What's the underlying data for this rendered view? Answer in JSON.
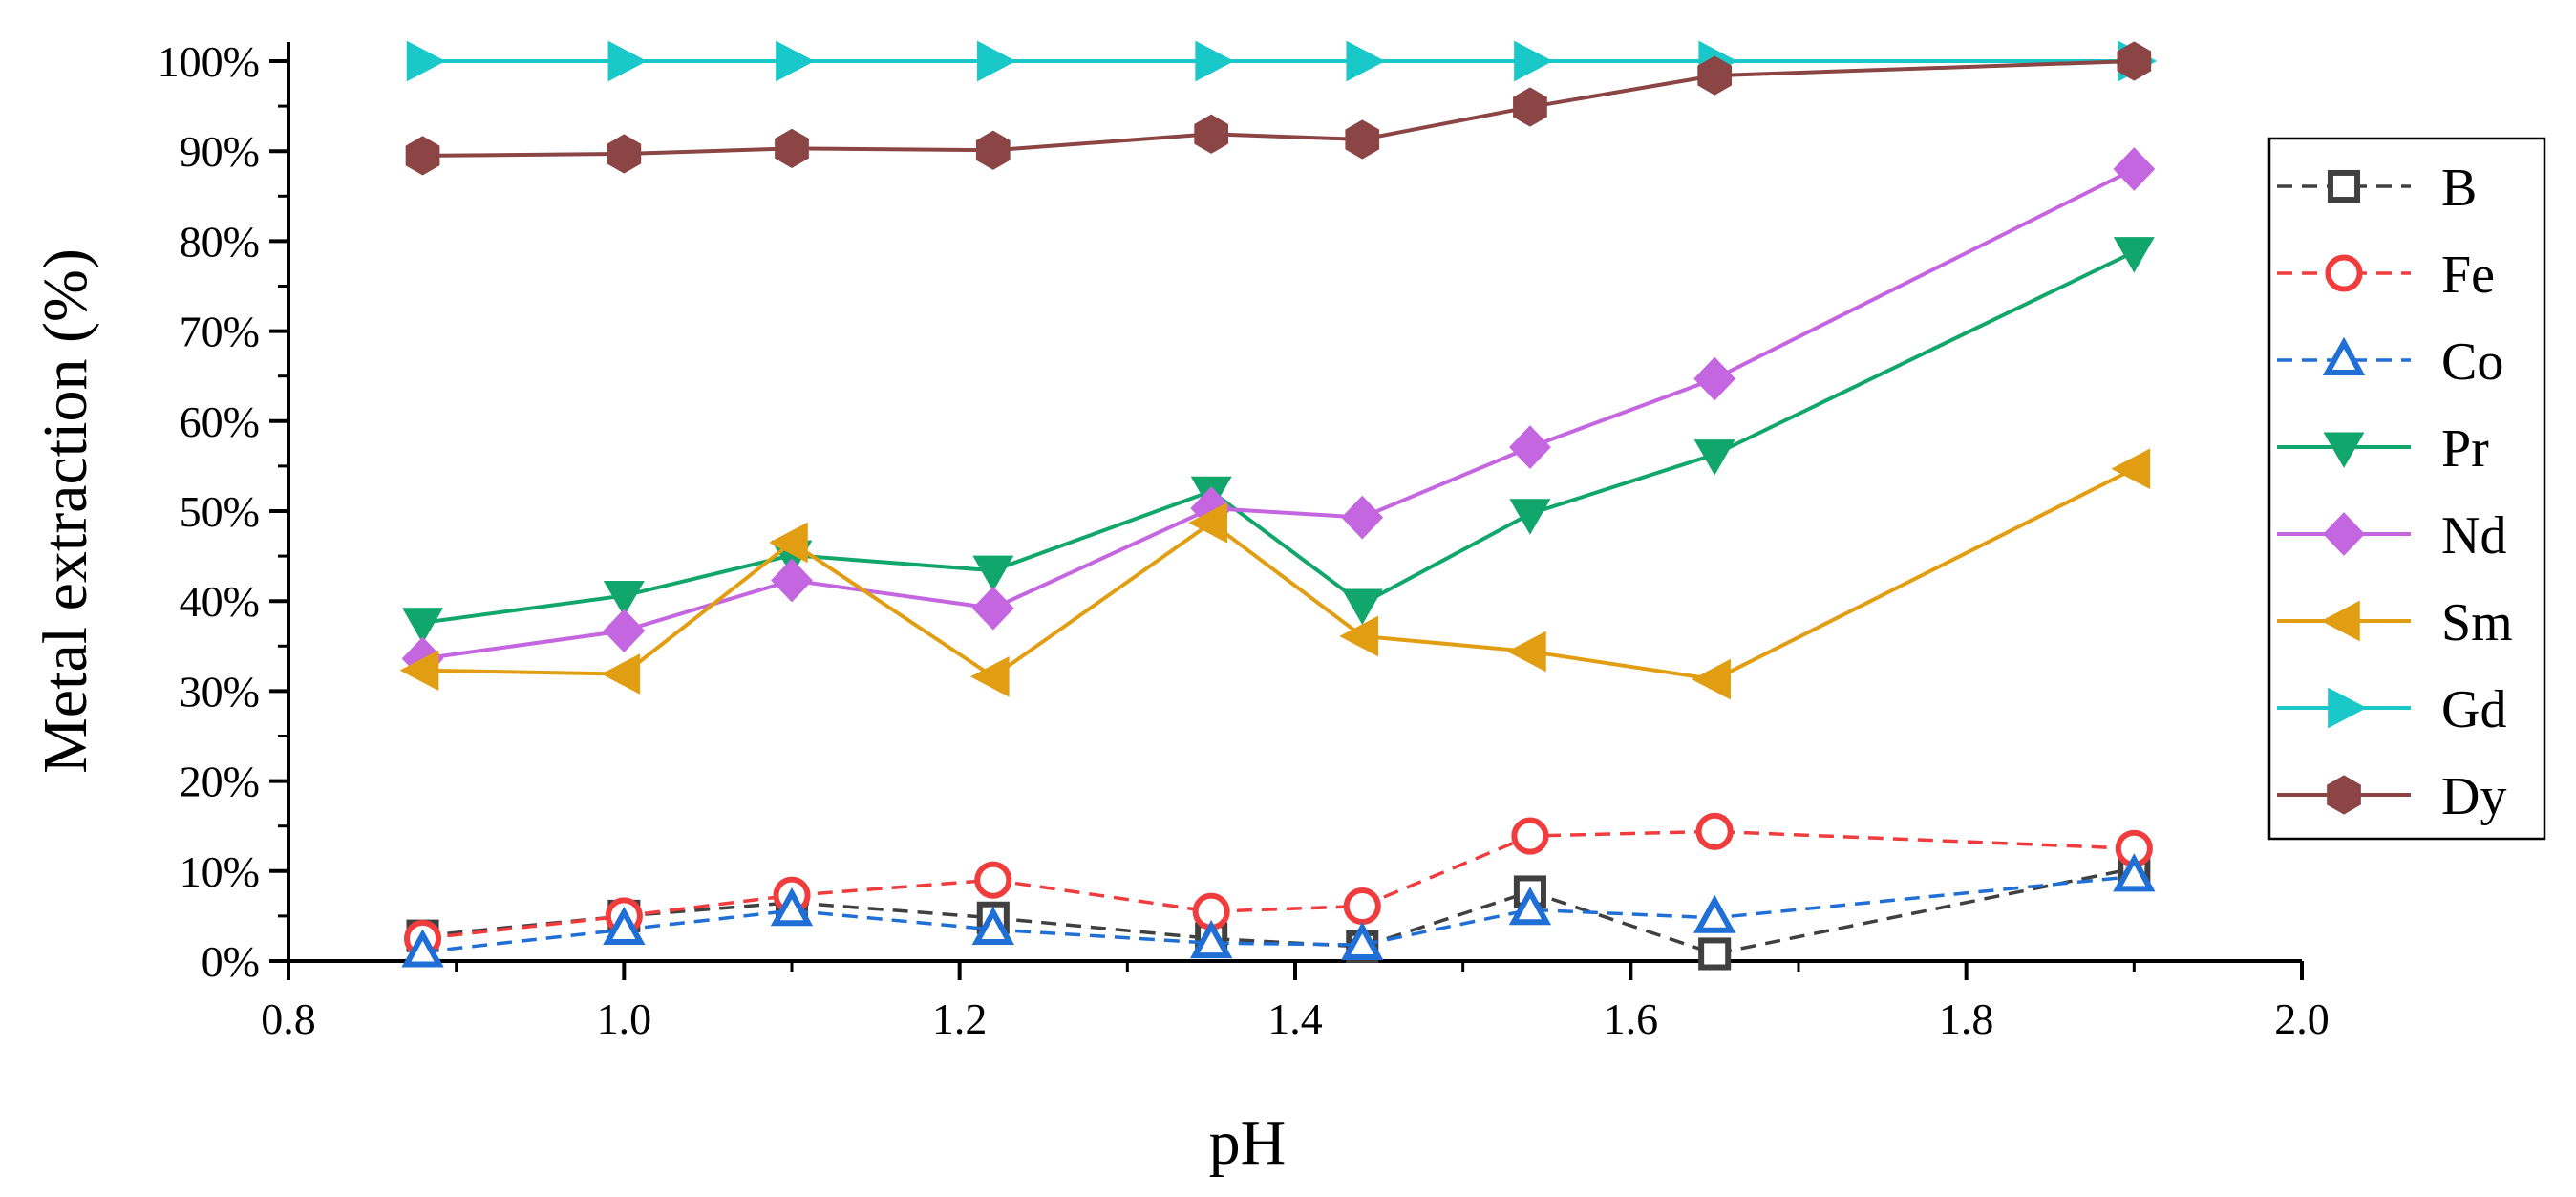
{
  "chart_data": {
    "type": "line",
    "title": "",
    "xlabel": "pH",
    "ylabel": "Metal extraction (%)",
    "xlim": [
      0.8,
      2.0
    ],
    "ylim": [
      0,
      100
    ],
    "xticks": [
      {
        "value": 0.8,
        "label": "0.8"
      },
      {
        "value": 1.0,
        "label": "1.0"
      },
      {
        "value": 1.2,
        "label": "1.2"
      },
      {
        "value": 1.4,
        "label": "1.4"
      },
      {
        "value": 1.6,
        "label": "1.6"
      },
      {
        "value": 1.8,
        "label": "1.8"
      },
      {
        "value": 2.0,
        "label": "2.0"
      }
    ],
    "yticks": [
      {
        "value": 0,
        "label": "0%"
      },
      {
        "value": 10,
        "label": "10%"
      },
      {
        "value": 20,
        "label": "20%"
      },
      {
        "value": 30,
        "label": "30%"
      },
      {
        "value": 40,
        "label": "40%"
      },
      {
        "value": 50,
        "label": "50%"
      },
      {
        "value": 60,
        "label": "60%"
      },
      {
        "value": 70,
        "label": "70%"
      },
      {
        "value": 80,
        "label": "80%"
      },
      {
        "value": 90,
        "label": "90%"
      },
      {
        "value": 100,
        "label": "100%"
      }
    ],
    "grid": false,
    "legend_position": "right",
    "x": [
      0.88,
      1.0,
      1.1,
      1.22,
      1.35,
      1.44,
      1.54,
      1.65,
      1.9
    ],
    "series": [
      {
        "name": "B",
        "color": "#404040",
        "dash": true,
        "marker": "square",
        "filled": false,
        "values": [
          2.8,
          5.0,
          6.5,
          4.8,
          2.5,
          1.6,
          7.7,
          0.8,
          10.3
        ]
      },
      {
        "name": "Fe",
        "color": "#f03c3c",
        "dash": true,
        "marker": "circle",
        "filled": false,
        "values": [
          2.5,
          5.0,
          7.3,
          9.0,
          5.5,
          6.1,
          13.9,
          14.4,
          12.5
        ]
      },
      {
        "name": "Co",
        "color": "#1f6fd6",
        "dash": true,
        "marker": "triangle-up",
        "filled": false,
        "values": [
          1.0,
          3.5,
          5.6,
          3.5,
          2.0,
          1.8,
          5.7,
          4.8,
          9.4
        ]
      },
      {
        "name": "Pr",
        "color": "#11a66b",
        "dash": false,
        "marker": "triangle-down",
        "filled": true,
        "values": [
          37.6,
          40.6,
          45.1,
          43.4,
          52.2,
          39.7,
          49.7,
          56.3,
          78.8
        ]
      },
      {
        "name": "Nd",
        "color": "#c466e0",
        "dash": false,
        "marker": "diamond",
        "filled": true,
        "values": [
          33.6,
          36.7,
          42.3,
          39.2,
          50.3,
          49.3,
          57.1,
          64.7,
          88.0
        ]
      },
      {
        "name": "Sm",
        "color": "#e29e12",
        "dash": false,
        "marker": "triangle-left",
        "filled": true,
        "values": [
          32.3,
          31.9,
          46.5,
          31.6,
          48.7,
          36.1,
          34.4,
          31.3,
          54.7
        ]
      },
      {
        "name": "Gd",
        "color": "#19c8c8",
        "dash": false,
        "marker": "triangle-right",
        "filled": true,
        "values": [
          100,
          100,
          100,
          100,
          100,
          100,
          100,
          100,
          100
        ]
      },
      {
        "name": "Dy",
        "color": "#8b4545",
        "dash": false,
        "marker": "hexagon",
        "filled": true,
        "values": [
          89.5,
          89.7,
          90.3,
          90.1,
          91.9,
          91.3,
          94.9,
          98.4,
          100
        ]
      }
    ]
  }
}
